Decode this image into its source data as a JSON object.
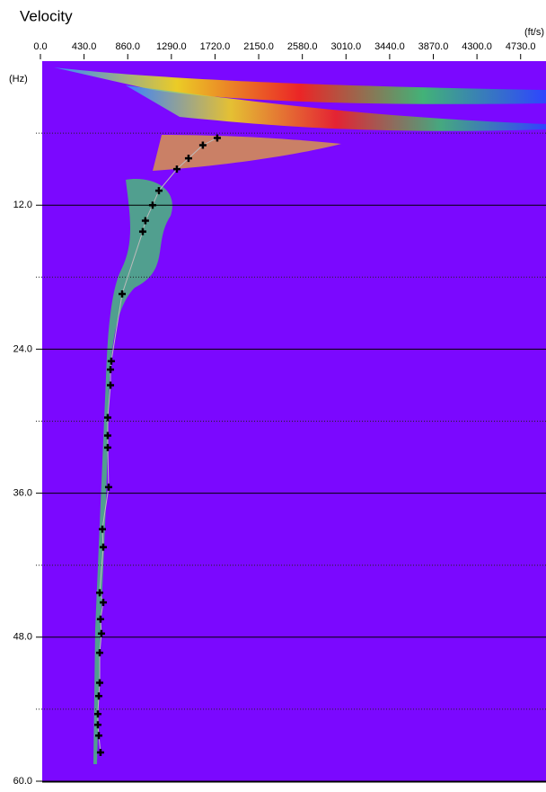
{
  "chart_data": {
    "type": "scatter",
    "title": "Velocity",
    "x_unit": "(ft/s)",
    "y_unit": "(Hz)",
    "x": [
      1742,
      1600,
      1459,
      1344,
      1167,
      1105,
      1034,
      1008,
      805,
      698,
      690,
      690,
      663,
      663,
      663,
      672,
      610,
      619,
      584,
      619,
      592,
      601,
      584,
      584,
      575,
      566,
      566,
      575,
      592
    ],
    "values": [
      6.4,
      7.0,
      8.1,
      9.0,
      10.8,
      12.0,
      13.3,
      14.2,
      19.4,
      25.0,
      25.7,
      27.0,
      29.7,
      31.2,
      32.2,
      35.5,
      39.0,
      40.5,
      44.3,
      45.1,
      46.5,
      47.7,
      49.3,
      51.8,
      52.9,
      54.4,
      55.3,
      56.2,
      57.6
    ],
    "color": "#000000",
    "xlim": [
      0,
      4980
    ],
    "xticks": [
      {
        "value": 0,
        "label": "0.0"
      },
      {
        "value": 430,
        "label": "430.0"
      },
      {
        "value": 860,
        "label": "860.0"
      },
      {
        "value": 1290,
        "label": "1290.0"
      },
      {
        "value": 1720,
        "label": "1720.0"
      },
      {
        "value": 2150,
        "label": "2150.0"
      },
      {
        "value": 2580,
        "label": "2580.0"
      },
      {
        "value": 3010,
        "label": "3010.0"
      },
      {
        "value": 3440,
        "label": "3440.0"
      },
      {
        "value": 3870,
        "label": "3870.0"
      },
      {
        "value": 4300,
        "label": "4300.0"
      },
      {
        "value": 4730,
        "label": "4730.0"
      }
    ],
    "ylim": [
      0,
      60
    ],
    "y_inverted": true,
    "yticks": [
      {
        "value": 12,
        "label": "12.0"
      },
      {
        "value": 24,
        "label": "24.0"
      },
      {
        "value": 36,
        "label": "36.0"
      },
      {
        "value": 48,
        "label": "48.0"
      },
      {
        "value": 60,
        "label": "60.0"
      }
    ],
    "minor_yticks": [
      6,
      18,
      30,
      42,
      54
    ],
    "grid": true
  }
}
